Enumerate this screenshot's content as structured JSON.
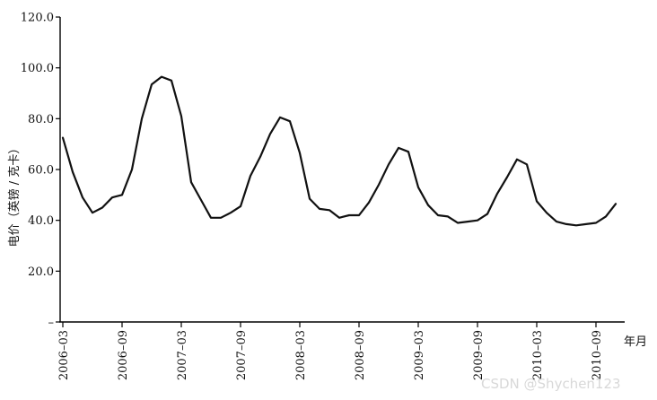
{
  "chart_data": {
    "type": "line",
    "title": "",
    "ylabel": "电价（英镑 / 克卡）",
    "xlabel": "年月",
    "ylim": [
      0,
      120
    ],
    "grid": false,
    "y_ticks": [
      "–",
      "20.0",
      "40.0",
      "60.0",
      "80.0",
      "100.0",
      "120.0"
    ],
    "x_tick_labels": [
      "2006–03",
      "2006–09",
      "2007–03",
      "2007–09",
      "2008–03",
      "2008–09",
      "2009–03",
      "2009–09",
      "2010–03",
      "2010–09"
    ],
    "series": [
      {
        "values": [
          72.5,
          59,
          49,
          43,
          45,
          49,
          50,
          60,
          80,
          93.5,
          96.5,
          95,
          81,
          55,
          48,
          41,
          41,
          43,
          45.5,
          57.5,
          65,
          74,
          80.5,
          79,
          66.5,
          48.5,
          44.5,
          44,
          41,
          42,
          42,
          47,
          54,
          62,
          68.5,
          67,
          53,
          46,
          42,
          41.5,
          39,
          39.5,
          40,
          42.5,
          50.5,
          57,
          64,
          62,
          47.5,
          43,
          39.5,
          38.5,
          38,
          38.5,
          39,
          41.5,
          46.5
        ]
      }
    ]
  },
  "watermark": "CSDN @Shychen123"
}
